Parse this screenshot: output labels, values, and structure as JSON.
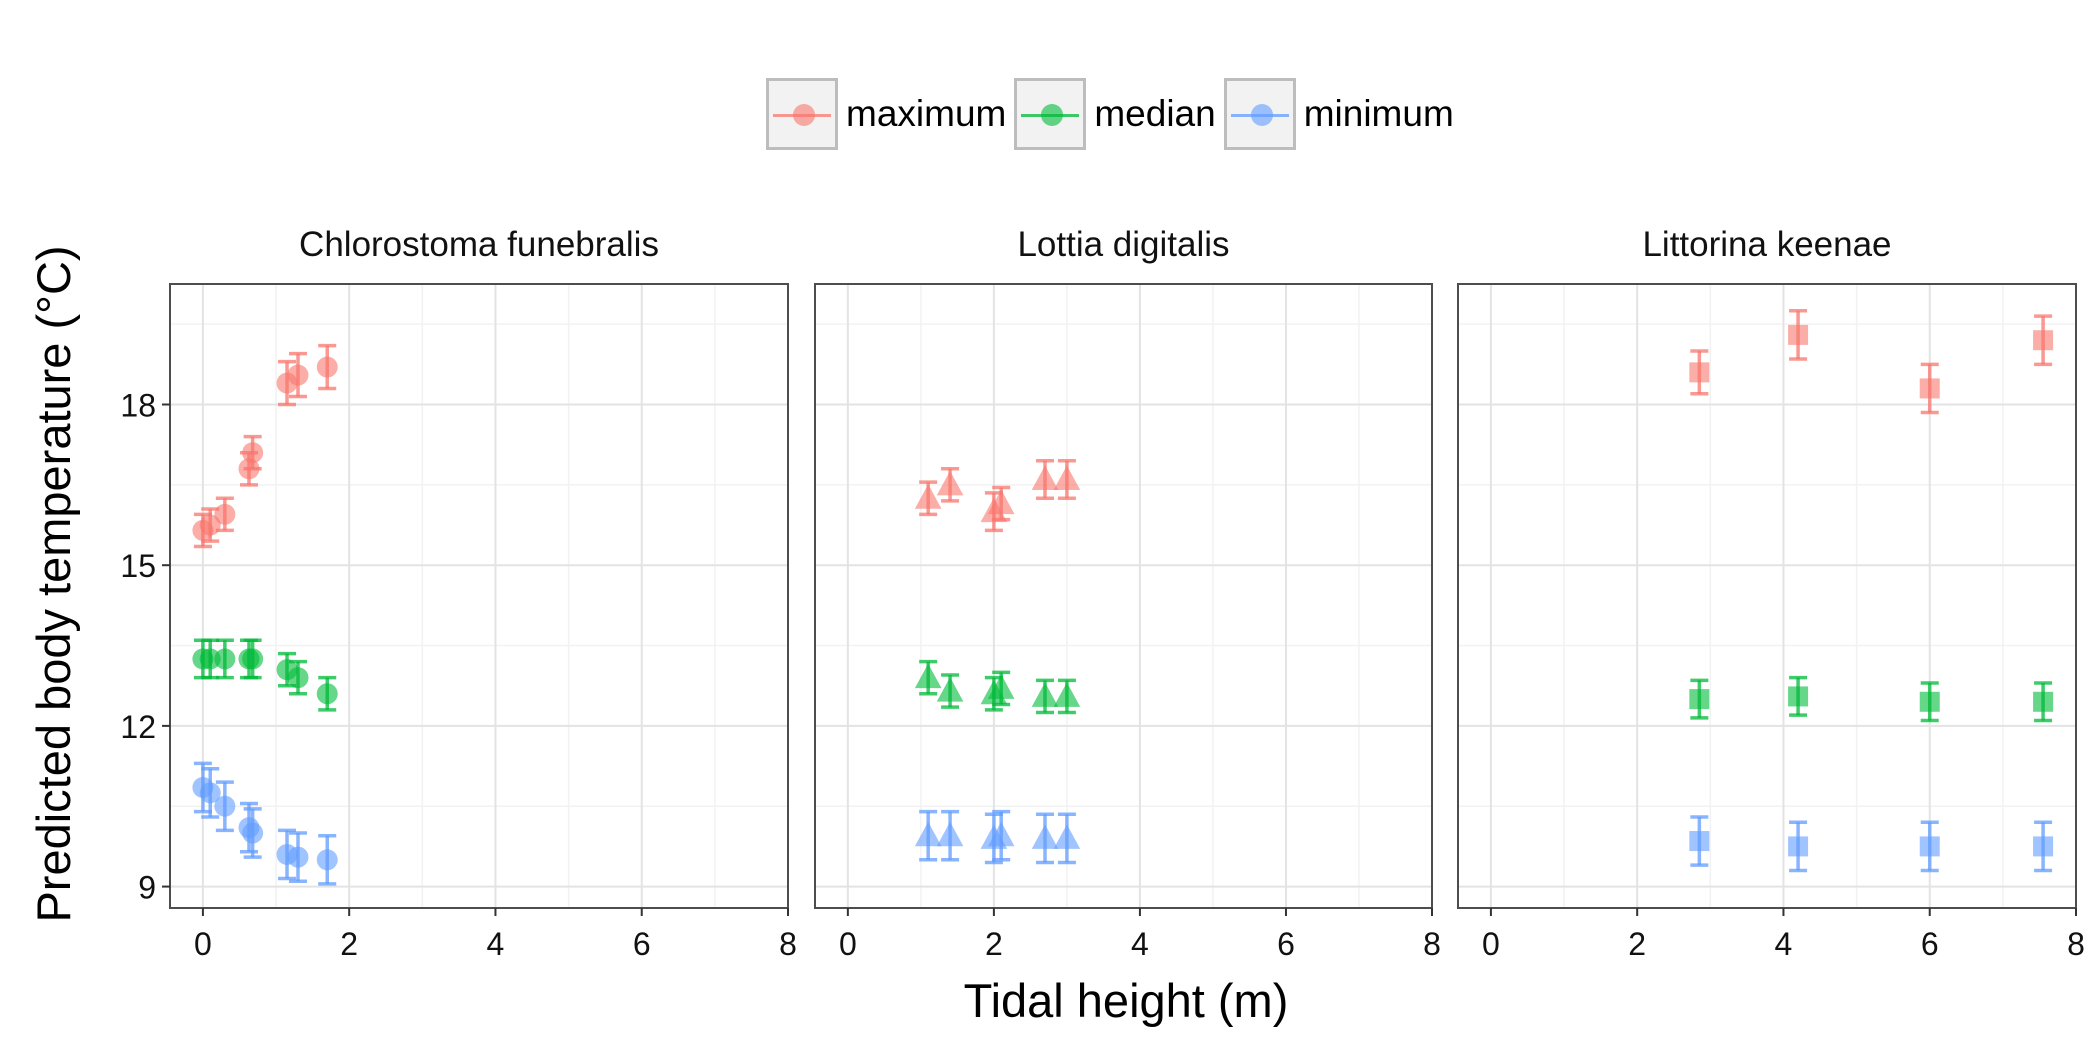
{
  "legend": {
    "items": [
      {
        "label": "maximum",
        "color": "#F8766D"
      },
      {
        "label": "median",
        "color": "#00BA38"
      },
      {
        "label": "minimum",
        "color": "#619CFF"
      }
    ]
  },
  "xlabel": "Tidal height (m)",
  "ylabel": "Predicted body temperature (°C)",
  "chart_data": {
    "type": "scatter",
    "xlabel": "Tidal height (m)",
    "ylabel": "Predicted body temperature (°C)",
    "xlim": [
      -0.45,
      8
    ],
    "ylim": [
      8.6,
      20.25
    ],
    "xticks": [
      0,
      2,
      4,
      6,
      8
    ],
    "yticks": [
      9,
      12,
      15,
      18
    ],
    "grid": true,
    "legend_position": "top",
    "series_colors": {
      "maximum": "#F8766D",
      "median": "#00BA38",
      "minimum": "#619CFF"
    },
    "panels": [
      {
        "title": "Chlorostoma funebralis",
        "marker": "circle",
        "series": [
          {
            "name": "maximum",
            "points": [
              {
                "x": 0.0,
                "y": 15.65,
                "err": 0.3
              },
              {
                "x": 0.1,
                "y": 15.75,
                "err": 0.3
              },
              {
                "x": 0.3,
                "y": 15.95,
                "err": 0.3
              },
              {
                "x": 0.63,
                "y": 16.8,
                "err": 0.3
              },
              {
                "x": 0.68,
                "y": 17.1,
                "err": 0.3
              },
              {
                "x": 1.15,
                "y": 18.4,
                "err": 0.4
              },
              {
                "x": 1.3,
                "y": 18.55,
                "err": 0.4
              },
              {
                "x": 1.7,
                "y": 18.7,
                "err": 0.4
              }
            ]
          },
          {
            "name": "median",
            "points": [
              {
                "x": 0.0,
                "y": 13.25,
                "err": 0.35
              },
              {
                "x": 0.1,
                "y": 13.25,
                "err": 0.35
              },
              {
                "x": 0.3,
                "y": 13.25,
                "err": 0.35
              },
              {
                "x": 0.63,
                "y": 13.25,
                "err": 0.35
              },
              {
                "x": 0.68,
                "y": 13.25,
                "err": 0.35
              },
              {
                "x": 1.15,
                "y": 13.05,
                "err": 0.3
              },
              {
                "x": 1.3,
                "y": 12.9,
                "err": 0.3
              },
              {
                "x": 1.7,
                "y": 12.6,
                "err": 0.3
              }
            ]
          },
          {
            "name": "minimum",
            "points": [
              {
                "x": 0.0,
                "y": 10.85,
                "err": 0.45
              },
              {
                "x": 0.1,
                "y": 10.75,
                "err": 0.45
              },
              {
                "x": 0.3,
                "y": 10.5,
                "err": 0.45
              },
              {
                "x": 0.63,
                "y": 10.1,
                "err": 0.45
              },
              {
                "x": 0.68,
                "y": 10.0,
                "err": 0.45
              },
              {
                "x": 1.15,
                "y": 9.6,
                "err": 0.45
              },
              {
                "x": 1.3,
                "y": 9.55,
                "err": 0.45
              },
              {
                "x": 1.7,
                "y": 9.5,
                "err": 0.45
              }
            ]
          }
        ]
      },
      {
        "title": "Lottia digitalis",
        "marker": "triangle",
        "series": [
          {
            "name": "maximum",
            "points": [
              {
                "x": 1.1,
                "y": 16.25,
                "err": 0.3
              },
              {
                "x": 1.4,
                "y": 16.5,
                "err": 0.3
              },
              {
                "x": 2.0,
                "y": 16.0,
                "err": 0.35
              },
              {
                "x": 2.1,
                "y": 16.15,
                "err": 0.3
              },
              {
                "x": 2.7,
                "y": 16.6,
                "err": 0.35
              },
              {
                "x": 3.0,
                "y": 16.6,
                "err": 0.35
              }
            ]
          },
          {
            "name": "median",
            "points": [
              {
                "x": 1.1,
                "y": 12.9,
                "err": 0.3
              },
              {
                "x": 1.4,
                "y": 12.65,
                "err": 0.3
              },
              {
                "x": 2.0,
                "y": 12.6,
                "err": 0.3
              },
              {
                "x": 2.1,
                "y": 12.7,
                "err": 0.3
              },
              {
                "x": 2.7,
                "y": 12.55,
                "err": 0.3
              },
              {
                "x": 3.0,
                "y": 12.55,
                "err": 0.3
              }
            ]
          },
          {
            "name": "minimum",
            "points": [
              {
                "x": 1.1,
                "y": 9.95,
                "err": 0.45
              },
              {
                "x": 1.4,
                "y": 9.95,
                "err": 0.45
              },
              {
                "x": 2.0,
                "y": 9.9,
                "err": 0.45
              },
              {
                "x": 2.1,
                "y": 9.95,
                "err": 0.45
              },
              {
                "x": 2.7,
                "y": 9.9,
                "err": 0.45
              },
              {
                "x": 3.0,
                "y": 9.9,
                "err": 0.45
              }
            ]
          }
        ]
      },
      {
        "title": "Littorina keenae",
        "marker": "square",
        "series": [
          {
            "name": "maximum",
            "points": [
              {
                "x": 2.85,
                "y": 18.6,
                "err": 0.4
              },
              {
                "x": 4.2,
                "y": 19.3,
                "err": 0.45
              },
              {
                "x": 6.0,
                "y": 18.3,
                "err": 0.45
              },
              {
                "x": 7.55,
                "y": 19.2,
                "err": 0.45
              }
            ]
          },
          {
            "name": "median",
            "points": [
              {
                "x": 2.85,
                "y": 12.5,
                "err": 0.35
              },
              {
                "x": 4.2,
                "y": 12.55,
                "err": 0.35
              },
              {
                "x": 6.0,
                "y": 12.45,
                "err": 0.35
              },
              {
                "x": 7.55,
                "y": 12.45,
                "err": 0.35
              }
            ]
          },
          {
            "name": "minimum",
            "points": [
              {
                "x": 2.85,
                "y": 9.85,
                "err": 0.45
              },
              {
                "x": 4.2,
                "y": 9.75,
                "err": 0.45
              },
              {
                "x": 6.0,
                "y": 9.75,
                "err": 0.45
              },
              {
                "x": 7.55,
                "y": 9.75,
                "err": 0.45
              }
            ]
          }
        ]
      }
    ]
  }
}
